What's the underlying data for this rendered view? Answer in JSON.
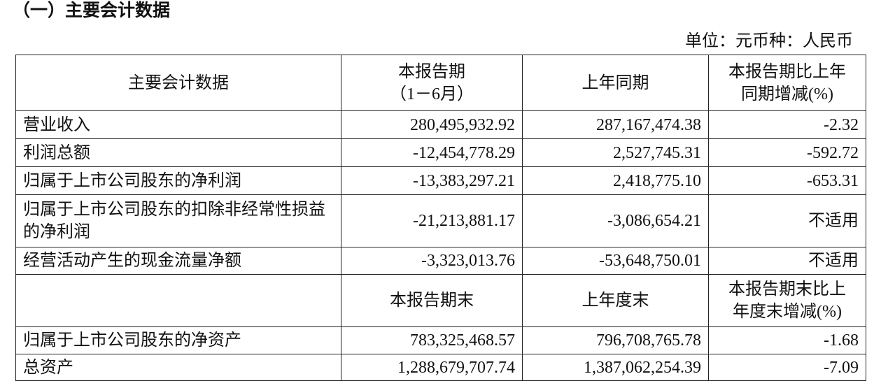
{
  "section_title": "（一）主要会计数据",
  "unit_note": "单位：元币种：人民币",
  "header1": {
    "col1": "主要会计数据",
    "col2_line1": "本报告期",
    "col2_line2": "（1－6月）",
    "col3": "上年同期",
    "col4_line1": "本报告期比上年",
    "col4_line2": "同期增减(%)"
  },
  "rows1": [
    {
      "label": "营业收入",
      "current": "280,495,932.92",
      "prior": "287,167,474.38",
      "change": "-2.32"
    },
    {
      "label": "利润总额",
      "current": "-12,454,778.29",
      "prior": "2,527,745.31",
      "change": "-592.72"
    },
    {
      "label": "归属于上市公司股东的净利润",
      "current": "-13,383,297.21",
      "prior": "2,418,775.10",
      "change": "-653.31"
    },
    {
      "label": "归属于上市公司股东的扣除非经常性损益的净利润",
      "current": "-21,213,881.17",
      "prior": "-3,086,654.21",
      "change": "不适用"
    },
    {
      "label": "经营活动产生的现金流量净额",
      "current": "-3,323,013.76",
      "prior": "-53,648,750.01",
      "change": "不适用"
    }
  ],
  "header2": {
    "col1": "",
    "col2": "本报告期末",
    "col3": "上年度末",
    "col4_line1": "本报告期末比上",
    "col4_line2": "年度末增减(%)"
  },
  "rows2": [
    {
      "label": "归属于上市公司股东的净资产",
      "current": "783,325,468.57",
      "prior": "796,708,765.78",
      "change": "-1.68"
    },
    {
      "label": "总资产",
      "current": "1,288,679,707.74",
      "prior": "1,387,062,254.39",
      "change": "-7.09"
    }
  ]
}
